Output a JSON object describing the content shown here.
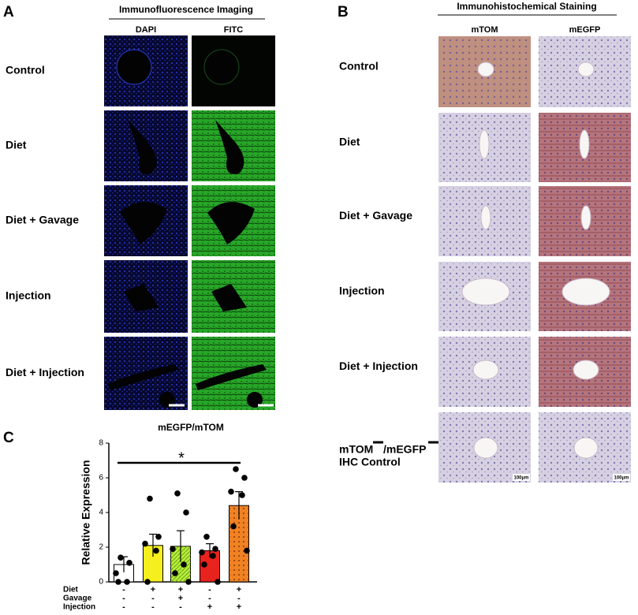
{
  "panel_a": {
    "letter": "A",
    "title": "Immunofluorescence Imaging",
    "columns": [
      "DAPI",
      "FITC"
    ],
    "rows": [
      "Control",
      "Diet",
      "Diet + Gavage",
      "Injection",
      "Diet + Injection"
    ]
  },
  "panel_b": {
    "letter": "B",
    "title": "Immunohistochemical Staining",
    "columns": [
      "mTOM",
      "mEGFP"
    ],
    "rows": [
      "Control",
      "Diet",
      "Diet + Gavage",
      "Injection",
      "Diet + Injection"
    ],
    "control_row": {
      "line1a": "mTOM",
      "line1b": "/mEGFP",
      "line2": "IHC Control"
    },
    "scale_label": "100μm"
  },
  "chart_data": {
    "type": "bar",
    "letter": "C",
    "title": "mEGFP/mTOM",
    "y_label": "Relative Expression",
    "values": [
      1.0,
      2.1,
      2.05,
      1.8,
      4.4
    ],
    "errors": [
      0.45,
      0.65,
      0.9,
      0.4,
      0.8
    ],
    "colors": [
      "#ffffff",
      "#f6ef1e",
      "#b6ee3c",
      "#e8231e",
      "#f08224"
    ],
    "points": [
      [
        1.4,
        1.1,
        0.5,
        0,
        0
      ],
      [
        4.8,
        2.6,
        2.2,
        1.8,
        0
      ],
      [
        5.1,
        4.0,
        1.9,
        1.0,
        0.5,
        0
      ],
      [
        2.6,
        1.9,
        1.7,
        1.5,
        1.0,
        0
      ],
      [
        6.5,
        6.0,
        5.2,
        5.0,
        3.2,
        1.8
      ]
    ],
    "ylim": [
      0,
      8
    ],
    "yticks": [
      0,
      2,
      4,
      6,
      8
    ],
    "annotation": "*",
    "conditions": [
      {
        "name": "Diet",
        "marks": [
          "-",
          "+",
          "+",
          "-",
          "+"
        ]
      },
      {
        "name": "Gavage",
        "marks": [
          "-",
          "-",
          "+",
          "-",
          "-"
        ]
      },
      {
        "name": "Injection",
        "marks": [
          "-",
          "-",
          "-",
          "+",
          "+"
        ]
      }
    ]
  }
}
